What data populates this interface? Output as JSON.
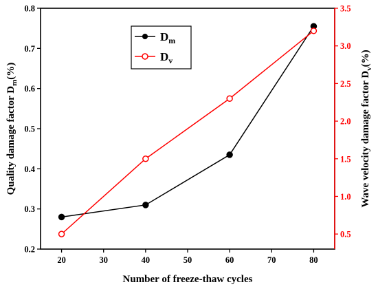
{
  "chart_data": {
    "type": "line",
    "x": [
      20,
      40,
      60,
      80
    ],
    "xlabel": "Number of freeze-thaw cycles",
    "xlim": [
      15,
      85
    ],
    "xticks": [
      "20",
      "30",
      "40",
      "50",
      "60",
      "70",
      "80"
    ],
    "ylabel_left": {
      "main": "Quality damage factor D",
      "sub": "m",
      "suffix": "(%)"
    },
    "ylim_left": [
      0.2,
      0.8
    ],
    "yticks_left": [
      "0.2",
      "0.3",
      "0.4",
      "0.5",
      "0.6",
      "0.7",
      "0.8"
    ],
    "ylabel_right": {
      "main": "Wave velocity damage factor D",
      "sub": "v",
      "suffix": "(%)"
    },
    "ylim_right": [
      0.3,
      3.5
    ],
    "yticks_right": [
      "0.5",
      "1.0",
      "1.5",
      "2.0",
      "2.5",
      "3.0",
      "3.5"
    ],
    "series": [
      {
        "name_main": "D",
        "name_sub": "m",
        "axis": "left",
        "color": "#000000",
        "values": [
          0.28,
          0.31,
          0.435,
          0.755
        ]
      },
      {
        "name_main": "D",
        "name_sub": "v",
        "axis": "right",
        "color": "#ff0000",
        "values": [
          0.5,
          1.5,
          2.3,
          3.2
        ]
      }
    ],
    "legend_position": "top-left",
    "right_axis_color": "#ff0000",
    "grid": false
  }
}
